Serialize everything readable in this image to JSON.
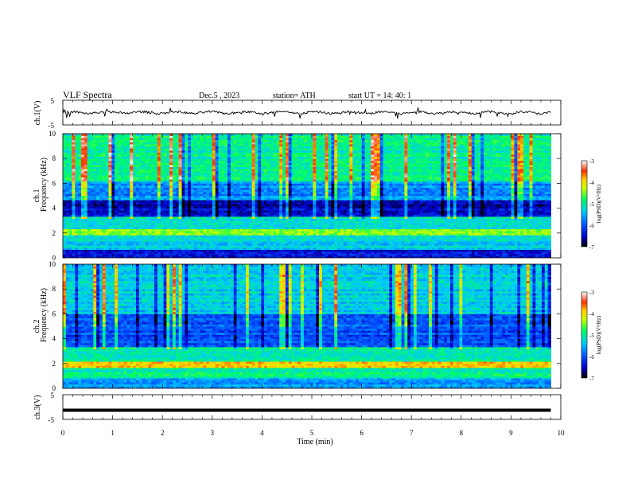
{
  "header": {
    "title": "VLF  Spectra",
    "date": "Dec.5  , 2023",
    "station": "station= ATH",
    "start": "start  UT  =    14: 40: 1"
  },
  "chart_data": [
    {
      "type": "line",
      "panel": "ch1-waveform",
      "ylabel": "ch.1(V)",
      "ylim": [
        -5,
        5
      ],
      "y_ticks": [
        "5",
        "-5"
      ],
      "xlim": [
        0,
        10
      ],
      "data_extent_min": [
        0,
        9.8
      ],
      "color": "#000000",
      "description_level": "near 0 V with noise and sferic spikes"
    },
    {
      "type": "heatmap",
      "panel": "ch1-spectrogram",
      "ylabel_top": "ch.1",
      "ylabel": "Frequency  (kHz)",
      "ylim": [
        0,
        10
      ],
      "y_ticks": [
        "0",
        "2",
        "4",
        "6",
        "8",
        "10"
      ],
      "xlim": [
        0,
        10
      ],
      "data_extent_min": [
        0,
        9.8
      ],
      "colorbar": {
        "label": "log(PSD)(V²/Hz)",
        "range": [
          -7,
          -3
        ],
        "ticks": [
          "-3",
          "-4",
          "-5",
          "-6",
          "-7"
        ],
        "colors": [
          "#000000",
          "#0000c8",
          "#0050ff",
          "#00c8ff",
          "#00ff60",
          "#c8ff00",
          "#ffd000",
          "#ff3000",
          "#ffffff"
        ]
      },
      "bands": [
        {
          "f": [
            0,
            0.6
          ],
          "level": -6.4,
          "label": "bottom dark banding"
        },
        {
          "f": [
            0.6,
            1.4
          ],
          "level": -5.3
        },
        {
          "f": [
            1.4,
            1.8
          ],
          "level": -5.2
        },
        {
          "f": [
            1.8,
            2.4
          ],
          "level": -4.5
        },
        {
          "f": [
            2.4,
            3.3
          ],
          "level": -5.2
        },
        {
          "f": [
            3.3,
            4.7
          ],
          "level": -6.5
        },
        {
          "f": [
            4.7,
            6.2
          ],
          "level": -5.7
        },
        {
          "f": [
            6.2,
            10.0
          ],
          "level": -5.0
        }
      ]
    },
    {
      "type": "heatmap",
      "panel": "ch2-spectrogram",
      "ylabel_top": "ch.2",
      "ylabel": "Frequency  (kHz)",
      "ylim": [
        0,
        10
      ],
      "y_ticks": [
        "0",
        "2",
        "4",
        "6",
        "8",
        "10"
      ],
      "xlim": [
        0,
        10
      ],
      "data_extent_min": [
        0,
        9.8
      ],
      "colorbar": {
        "label": "log(PSD)(V²/Hz)",
        "range": [
          -7,
          -3
        ],
        "ticks": [
          "-3",
          "-4",
          "-5",
          "-6",
          "-7"
        ],
        "colors": [
          "#000000",
          "#0000c8",
          "#0050ff",
          "#00c8ff",
          "#00ff60",
          "#c8ff00",
          "#ffd000",
          "#ff3000",
          "#ffffff"
        ]
      },
      "bands": [
        {
          "f": [
            0,
            0.8
          ],
          "level": -5.6
        },
        {
          "f": [
            0.8,
            1.6
          ],
          "level": -5.0
        },
        {
          "f": [
            1.6,
            2.2
          ],
          "level": -4.0
        },
        {
          "f": [
            2.2,
            3.3
          ],
          "level": -5.0
        },
        {
          "f": [
            3.3,
            6.0
          ],
          "level": -6.0
        },
        {
          "f": [
            6.0,
            10.0
          ],
          "level": -5.3
        }
      ]
    },
    {
      "type": "line",
      "panel": "ch3-waveform",
      "ylabel": "ch.3(V)",
      "ylim": [
        -5,
        5
      ],
      "y_ticks": [
        "5",
        "-5"
      ],
      "xlim": [
        0,
        10
      ],
      "xlabel": "Time  (min)",
      "x_ticks": [
        "0",
        "1",
        "2",
        "3",
        "4",
        "5",
        "6",
        "7",
        "8",
        "9",
        "10"
      ],
      "data_extent_min": [
        0,
        9.8
      ],
      "color": "#000000",
      "level": -1.3
    }
  ]
}
